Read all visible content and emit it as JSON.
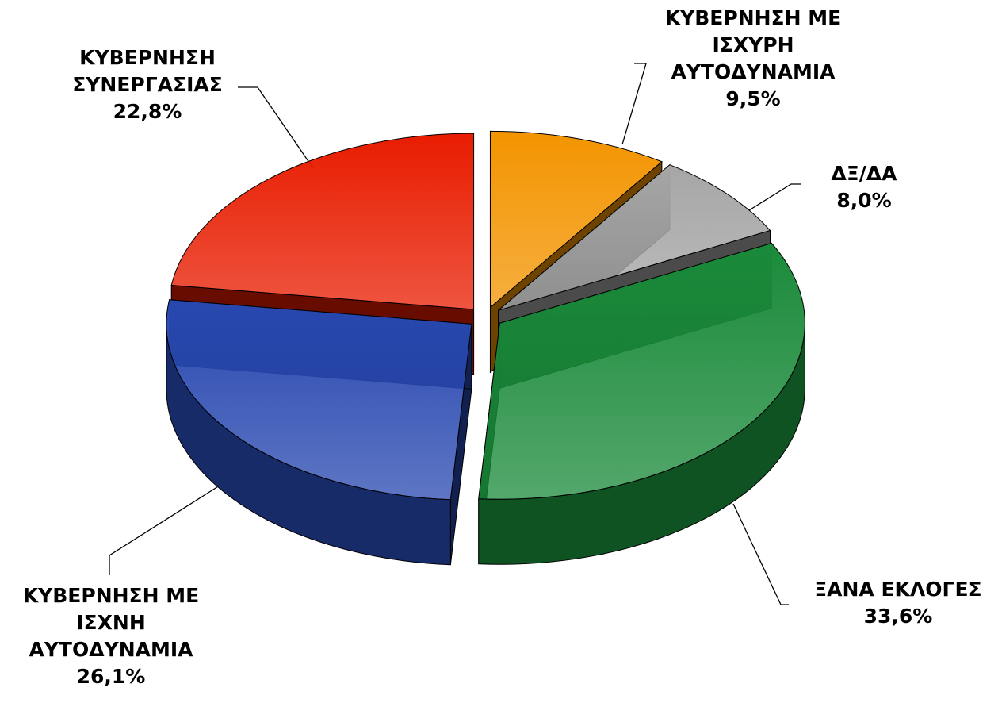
{
  "chart_data": {
    "type": "pie",
    "categories": [
      "ΚΥΒΕΡΝΗΣΗ ΜΕ ΙΣΧΥΡΗ ΑΥΤΟΔΥΝΑΜΙΑ",
      "ΔΞ/ΔΑ",
      "ΞΑΝΑ ΕΚΛΟΓΕΣ",
      "ΚΥΒΕΡΝΗΣΗ ΜΕ ΙΣΧΝΗ ΑΥΤΟΔΥΝΑΜΙΑ",
      "ΚΥΒΕΡΝΗΣΗ ΣΥΝΕΡΓΑΣΙΑΣ"
    ],
    "values": [
      9.5,
      8.0,
      33.6,
      26.1,
      22.8
    ],
    "value_labels": [
      "9,5%",
      "8,0%",
      "33,6%",
      "26,1%",
      "22,8%"
    ],
    "colors": [
      "#f39400",
      "#a6a6a6",
      "#1a8a3a",
      "#2848b0",
      "#e81c00"
    ]
  }
}
